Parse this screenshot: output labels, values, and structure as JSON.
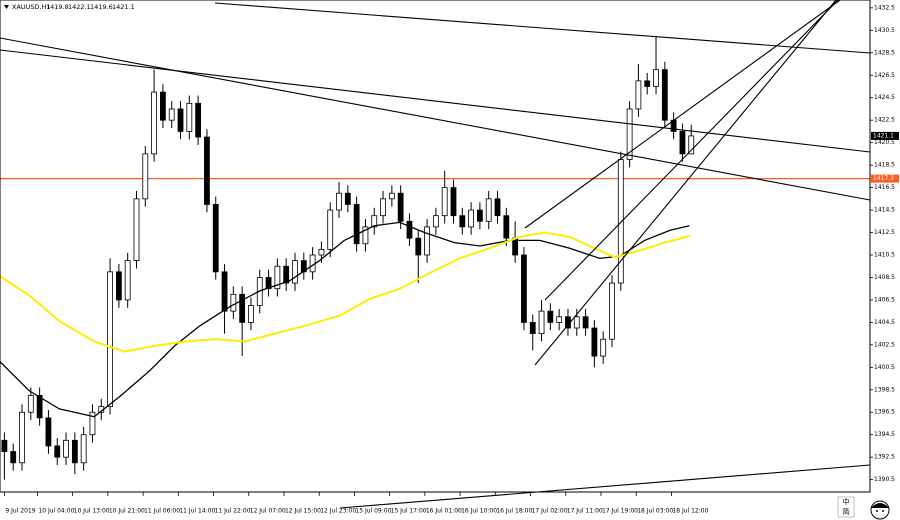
{
  "chart_data": {
    "type": "candlestick",
    "symbol": "XAUUSD,H1",
    "header_ohlc": [
      1419.8,
      1422.1,
      1419.6,
      1421.1
    ],
    "up_color": "#ffffff",
    "down_color": "#000000",
    "open": [
      1394.0,
      1393.0,
      1392.0,
      1396.5,
      1398.0,
      1396.0,
      1393.5,
      1392.5,
      1394.0,
      1392.0,
      1394.5,
      1396.5,
      1397.0,
      1409.0,
      1406.5,
      1410.0,
      1415.5,
      1419.5,
      1425.0,
      1422.5,
      1423.5,
      1421.5,
      1424.0,
      1421.0,
      1415.0,
      1409.0,
      1405.5,
      1407.0,
      1404.5,
      1406.0,
      1408.5,
      1407.5,
      1409.5,
      1408.0,
      1410.0,
      1409.0,
      1410.5,
      1411.0,
      1414.5,
      1416.0,
      1415.0,
      1411.5,
      1413.0,
      1414.0,
      1415.5,
      1416.0,
      1413.5,
      1412.0,
      1410.5,
      1413.0,
      1414.0,
      1416.5,
      1414.0,
      1413.0,
      1414.5,
      1413.5,
      1415.5,
      1414.0,
      1412.0,
      1410.5,
      1404.5,
      1403.5,
      1405.5,
      1404.5,
      1405.0,
      1404.0,
      1405.0,
      1404.0,
      1401.5,
      1403.0,
      1408.0,
      1419.0,
      1423.5,
      1426.0,
      1425.5,
      1427.0,
      1422.5,
      1421.5,
      1419.5
    ],
    "high": [
      1394.7,
      1393.7,
      1397.2,
      1398.7,
      1398.7,
      1396.7,
      1394.2,
      1394.7,
      1394.7,
      1395.2,
      1397.2,
      1397.7,
      1410.2,
      1409.7,
      1410.7,
      1416.2,
      1420.2,
      1427.0,
      1425.7,
      1424.2,
      1424.2,
      1424.7,
      1424.7,
      1421.7,
      1415.7,
      1409.7,
      1407.7,
      1407.7,
      1406.7,
      1409.2,
      1409.2,
      1410.2,
      1410.2,
      1410.7,
      1410.7,
      1411.2,
      1411.7,
      1415.2,
      1417.0,
      1416.7,
      1415.7,
      1413.7,
      1414.7,
      1416.2,
      1416.7,
      1416.7,
      1414.2,
      1412.7,
      1413.7,
      1414.7,
      1418.0,
      1417.2,
      1414.7,
      1415.2,
      1415.2,
      1416.2,
      1416.2,
      1414.7,
      1413.5,
      1411.2,
      1405.2,
      1406.5,
      1406.2,
      1405.7,
      1405.7,
      1405.7,
      1405.7,
      1404.7,
      1403.7,
      1408.7,
      1419.7,
      1424.2,
      1427.5,
      1426.7,
      1430.0,
      1427.7,
      1423.2,
      1422.2,
      1422.1
    ],
    "low": [
      1390.5,
      1391.3,
      1391.3,
      1395.8,
      1395.3,
      1392.8,
      1391.8,
      1391.8,
      1391.0,
      1391.3,
      1393.8,
      1395.8,
      1396.3,
      1405.8,
      1405.8,
      1409.3,
      1414.8,
      1418.8,
      1421.8,
      1421.8,
      1420.8,
      1420.8,
      1420.3,
      1414.3,
      1408.3,
      1403.5,
      1404.8,
      1401.5,
      1403.8,
      1405.3,
      1406.8,
      1406.8,
      1407.3,
      1407.3,
      1408.3,
      1408.3,
      1409.8,
      1410.3,
      1413.8,
      1414.3,
      1410.8,
      1410.8,
      1412.3,
      1413.3,
      1414.8,
      1412.8,
      1411.3,
      1408.0,
      1409.8,
      1412.3,
      1413.3,
      1413.3,
      1412.3,
      1412.3,
      1412.8,
      1412.8,
      1413.3,
      1411.3,
      1409.8,
      1403.8,
      1402.0,
      1402.8,
      1403.8,
      1403.8,
      1403.3,
      1403.3,
      1403.3,
      1400.5,
      1400.8,
      1402.3,
      1407.3,
      1418.3,
      1422.8,
      1424.8,
      1424.8,
      1421.8,
      1420.8,
      1418.8,
      1419.6
    ],
    "close": [
      1393.0,
      1392.0,
      1396.5,
      1398.0,
      1396.0,
      1393.5,
      1392.5,
      1394.0,
      1392.0,
      1394.5,
      1396.5,
      1397.0,
      1409.0,
      1406.5,
      1410.0,
      1415.5,
      1419.5,
      1425.0,
      1422.5,
      1423.5,
      1421.5,
      1424.0,
      1421.0,
      1415.0,
      1409.0,
      1405.5,
      1407.0,
      1404.5,
      1406.0,
      1408.5,
      1407.5,
      1409.5,
      1408.0,
      1410.0,
      1409.0,
      1410.5,
      1411.0,
      1414.5,
      1416.0,
      1415.0,
      1411.5,
      1413.0,
      1414.0,
      1415.5,
      1416.0,
      1413.5,
      1412.0,
      1410.5,
      1413.0,
      1414.0,
      1416.5,
      1414.0,
      1413.0,
      1414.5,
      1413.5,
      1415.5,
      1414.0,
      1412.0,
      1410.5,
      1404.5,
      1403.5,
      1405.5,
      1404.5,
      1405.0,
      1404.0,
      1405.0,
      1404.0,
      1401.5,
      1403.0,
      1408.0,
      1419.0,
      1423.5,
      1426.0,
      1425.5,
      1427.0,
      1422.5,
      1421.5,
      1419.5,
      1421.1
    ],
    "lines": [
      {
        "color": "#000000",
        "x": [
          -0.5,
          2.84,
          6.25,
          10.2,
          13.1,
          16.5,
          19.3,
          22.2,
          25.6,
          29,
          32.4,
          35.8,
          38.6,
          42,
          44.9,
          47.7,
          51.1,
          54,
          57.4,
          60.8,
          64.2,
          67.6,
          69.9,
          72.7,
          75.6,
          77.8
        ],
        "values": [
          1401.0,
          1398.4,
          1396.8,
          1396.1,
          1397.9,
          1400.2,
          1402.4,
          1404.2,
          1405.9,
          1407.3,
          1408.2,
          1410.0,
          1411.8,
          1413.1,
          1413.4,
          1412.5,
          1411.6,
          1411.3,
          1411.8,
          1411.8,
          1411.1,
          1410.2,
          1410.4,
          1411.8,
          1412.7,
          1413.1
        ]
      },
      {
        "color": "#ffee00",
        "x": [
          -0.5,
          2.84,
          6.25,
          10.2,
          13.6,
          17,
          20.5,
          23.9,
          27.3,
          30.7,
          34.1,
          38.1,
          41.5,
          44.9,
          48.3,
          51.7,
          55.1,
          58.5,
          61.4,
          64.2,
          67,
          69.3,
          72.2,
          75,
          77.8
        ],
        "values": [
          1408.6,
          1406.9,
          1404.6,
          1402.8,
          1401.9,
          1402.4,
          1402.8,
          1403.0,
          1402.8,
          1403.5,
          1404.2,
          1405.1,
          1406.6,
          1407.5,
          1408.9,
          1410.2,
          1411.1,
          1412.1,
          1412.5,
          1412.1,
          1411.1,
          1410.3,
          1410.9,
          1411.6,
          1412.2
        ]
      }
    ],
    "hline": {
      "value": 1417.3,
      "color": "#ff5a1f"
    },
    "xlim": [
      -0.5,
      98.3
    ],
    "ylim": [
      1389.4,
      1433.2
    ],
    "yticks": [
      1432.5,
      1430.5,
      1428.5,
      1426.5,
      1424.5,
      1422.5,
      1420.5,
      1418.5,
      1416.5,
      1414.5,
      1412.5,
      1410.5,
      1408.5,
      1406.5,
      1404.5,
      1402.5,
      1400.5,
      1398.5,
      1396.5,
      1394.5,
      1392.5,
      1390.5
    ],
    "xticks": [
      {
        "value": 0,
        "label": "9 Jul 2019"
      },
      {
        "value": 3.75,
        "label": "10 Jul 04:00"
      },
      {
        "value": 7.75,
        "label": "10 Jul 13:00"
      },
      {
        "value": 11.75,
        "label": "10 Jul 21:00"
      },
      {
        "value": 15.75,
        "label": "11 Jul 06:00"
      },
      {
        "value": 19.75,
        "label": "11 Jul 14:00"
      },
      {
        "value": 23.75,
        "label": "11 Jul 22:00"
      },
      {
        "value": 27.75,
        "label": "12 Jul 07:00"
      },
      {
        "value": 31.75,
        "label": "12 Jul 15:00"
      },
      {
        "value": 35.75,
        "label": "12 Jul 23:00"
      },
      {
        "value": 39.75,
        "label": "15 Jul 09:00"
      },
      {
        "value": 43.75,
        "label": "15 Jul 17:00"
      },
      {
        "value": 47.75,
        "label": "16 Jul 01:00"
      },
      {
        "value": 51.75,
        "label": "16 Jul 10:00"
      },
      {
        "value": 55.75,
        "label": "16 Jul 18:00"
      },
      {
        "value": 59.75,
        "label": "17 Jul 02:00"
      },
      {
        "value": 63.75,
        "label": "17 Jul 11:00"
      },
      {
        "value": 67.75,
        "label": "17 Jul 19:00"
      },
      {
        "value": 71.75,
        "label": "18 Jul 03:00"
      },
      {
        "value": 75.75,
        "label": "18 Jul 12:00"
      }
    ],
    "ime": [
      "中",
      "简"
    ]
  }
}
